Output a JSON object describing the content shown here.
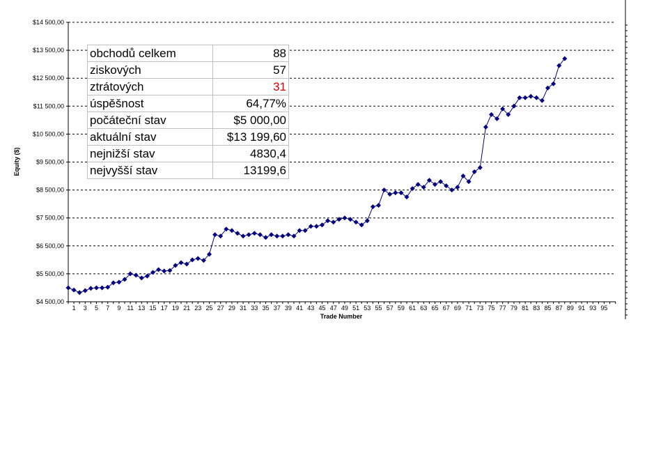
{
  "stats_table": [
    {
      "label": "obchodů celkem",
      "value": "88"
    },
    {
      "label": "ziskových",
      "value": "57"
    },
    {
      "label": "ztrátových",
      "value": "31",
      "color": "#e00000"
    },
    {
      "label": "úspěšnost",
      "value": "64,77%"
    },
    {
      "label": "počáteční stav",
      "value": "$5 000,00"
    },
    {
      "label": "aktuální stav",
      "value": "$13 199,60"
    },
    {
      "label": "nejnižší stav",
      "value": "4830,4"
    },
    {
      "label": "nejvyšší stav",
      "value": "13199,6"
    }
  ],
  "chart_data": {
    "type": "line",
    "xlabel": "Trade Number",
    "ylabel": "Equity ($)",
    "ylim": [
      4500,
      14500
    ],
    "xlim": [
      0,
      97
    ],
    "y_ticks": [
      "$4 500,00",
      "$5 500,00",
      "$6 500,00",
      "$7 500,00",
      "$8 500,00",
      "$9 500,00",
      "$10 500,00",
      "$11 500,00",
      "$12 500,00",
      "$13 500,00",
      "$14 500,00"
    ],
    "y_tick_values": [
      4500,
      5500,
      6500,
      7500,
      8500,
      9500,
      10500,
      11500,
      12500,
      13500,
      14500
    ],
    "x_ticks": [
      1,
      3,
      5,
      7,
      9,
      11,
      13,
      15,
      17,
      19,
      21,
      23,
      25,
      27,
      29,
      31,
      33,
      35,
      37,
      39,
      41,
      43,
      45,
      47,
      49,
      51,
      53,
      55,
      57,
      59,
      61,
      63,
      65,
      67,
      69,
      71,
      73,
      75,
      77,
      79,
      81,
      83,
      85,
      87,
      89,
      91,
      93,
      95
    ],
    "grid": "horizontal dashed",
    "line_color": "#000080",
    "marker": "diamond",
    "x": [
      0,
      1,
      2,
      3,
      4,
      5,
      6,
      7,
      8,
      9,
      10,
      11,
      12,
      13,
      14,
      15,
      16,
      17,
      18,
      19,
      20,
      21,
      22,
      23,
      24,
      25,
      26,
      27,
      28,
      29,
      30,
      31,
      32,
      33,
      34,
      35,
      36,
      37,
      38,
      39,
      40,
      41,
      42,
      43,
      44,
      45,
      46,
      47,
      48,
      49,
      50,
      51,
      52,
      53,
      54,
      55,
      56,
      57,
      58,
      59,
      60,
      61,
      62,
      63,
      64,
      65,
      66,
      67,
      68,
      69,
      70,
      71,
      72,
      73,
      74,
      75,
      76,
      77,
      78,
      79,
      80,
      81,
      82,
      83,
      84,
      85,
      86,
      87,
      88
    ],
    "y": [
      5000,
      4920,
      4830,
      4900,
      4980,
      5000,
      5000,
      5020,
      5180,
      5200,
      5300,
      5500,
      5450,
      5350,
      5420,
      5550,
      5650,
      5600,
      5620,
      5800,
      5900,
      5850,
      6000,
      6050,
      5980,
      6200,
      6900,
      6850,
      7100,
      7050,
      6950,
      6850,
      6900,
      6950,
      6900,
      6800,
      6900,
      6850,
      6850,
      6900,
      6850,
      7050,
      7050,
      7200,
      7200,
      7250,
      7400,
      7350,
      7450,
      7500,
      7450,
      7350,
      7250,
      7400,
      7900,
      7950,
      8500,
      8350,
      8400,
      8400,
      8250,
      8550,
      8700,
      8600,
      8850,
      8700,
      8800,
      8650,
      8500,
      8600,
      9000,
      8800,
      9150,
      9300,
      10750,
      11200,
      11050,
      11400,
      11200,
      11500,
      11800,
      11800,
      11850,
      11800,
      11700,
      12150,
      12300,
      12950,
      13199.6
    ]
  }
}
